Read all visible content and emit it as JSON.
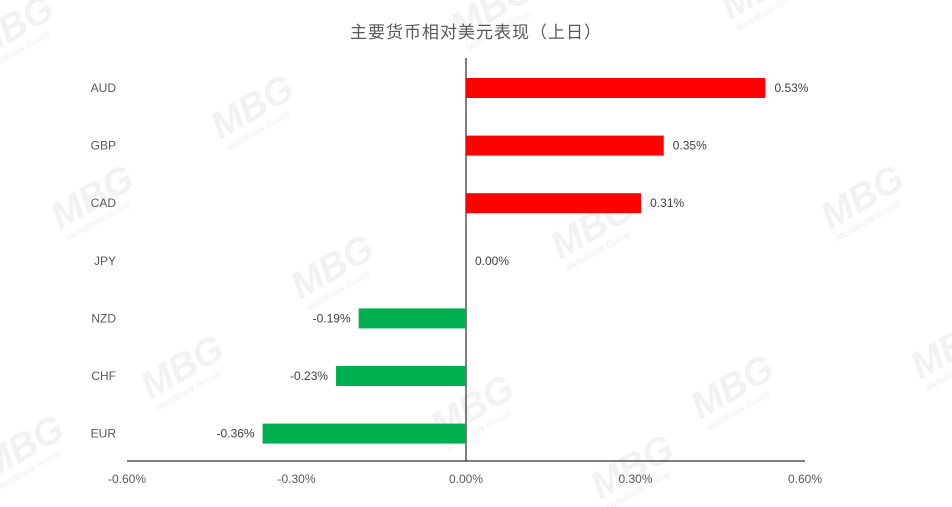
{
  "chart_data": {
    "type": "bar",
    "orientation": "horizontal",
    "title": "主要货币相对美元表现（上日）",
    "categories": [
      "AUD",
      "GBP",
      "CAD",
      "JPY",
      "NZD",
      "CHF",
      "EUR"
    ],
    "values": [
      0.53,
      0.35,
      0.31,
      0.0,
      -0.19,
      -0.23,
      -0.36
    ],
    "data_labels": [
      "0.53%",
      "0.35%",
      "0.31%",
      "0.00%",
      "-0.19%",
      "-0.23%",
      "-0.36%"
    ],
    "xlim": [
      -0.6,
      0.6
    ],
    "x_ticks": [
      -0.6,
      -0.3,
      0.0,
      0.3,
      0.6
    ],
    "x_tick_labels": [
      "-0.60%",
      "-0.30%",
      "0.00%",
      "0.30%",
      "0.60%"
    ],
    "grid": false,
    "colors": {
      "positive": "#ff0000",
      "negative": "#00b050"
    }
  },
  "watermark": {
    "text": "MBG",
    "subtext": "MultiBank Group"
  }
}
